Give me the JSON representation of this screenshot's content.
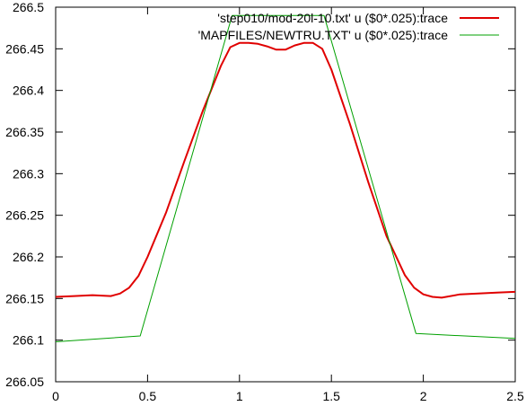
{
  "chart_data": {
    "type": "line",
    "title": "",
    "xlabel": "",
    "ylabel": "",
    "xlim": [
      0,
      2.5
    ],
    "ylim": [
      266.05,
      266.5
    ],
    "grid": false,
    "legend_position": "top-right",
    "x_ticks": [
      {
        "value": 0,
        "label": "0"
      },
      {
        "value": 0.5,
        "label": "0.5"
      },
      {
        "value": 1,
        "label": "1"
      },
      {
        "value": 1.5,
        "label": "1.5"
      },
      {
        "value": 2,
        "label": "2"
      },
      {
        "value": 2.5,
        "label": "2.5"
      }
    ],
    "y_ticks": [
      {
        "value": 266.05,
        "label": "266.05"
      },
      {
        "value": 266.1,
        "label": "266.1"
      },
      {
        "value": 266.15,
        "label": "266.15"
      },
      {
        "value": 266.2,
        "label": "266.2"
      },
      {
        "value": 266.25,
        "label": "266.25"
      },
      {
        "value": 266.3,
        "label": "266.3"
      },
      {
        "value": 266.35,
        "label": "266.35"
      },
      {
        "value": 266.4,
        "label": "266.4"
      },
      {
        "value": 266.45,
        "label": "266.45"
      },
      {
        "value": 266.5,
        "label": "266.5"
      }
    ],
    "series": [
      {
        "name": "'step010/mod-20l-10.txt' u ($0*.025):trace",
        "color": "#e00000",
        "x": [
          0,
          0.1,
          0.2,
          0.3,
          0.35,
          0.4,
          0.45,
          0.5,
          0.6,
          0.7,
          0.8,
          0.9,
          0.95,
          1.0,
          1.05,
          1.1,
          1.15,
          1.2,
          1.25,
          1.3,
          1.35,
          1.4,
          1.45,
          1.5,
          1.6,
          1.7,
          1.8,
          1.9,
          1.95,
          2.0,
          2.05,
          2.1,
          2.2,
          2.3,
          2.4,
          2.5
        ],
        "y": [
          266.152,
          266.153,
          266.154,
          266.153,
          266.156,
          266.163,
          266.177,
          266.2,
          266.253,
          266.315,
          266.375,
          266.43,
          266.452,
          266.457,
          266.457,
          266.456,
          266.453,
          266.449,
          266.449,
          266.454,
          266.457,
          266.457,
          266.45,
          266.425,
          266.36,
          266.29,
          266.225,
          266.178,
          266.163,
          266.155,
          266.152,
          266.151,
          266.155,
          266.156,
          266.157,
          266.158
        ]
      },
      {
        "name": "'MAPFILES/NEWTRU.TXT' u ($0*.025):trace",
        "color": "#00a000",
        "x": [
          0,
          0.46,
          0.96,
          1.46,
          1.96,
          2.5
        ],
        "y": [
          266.098,
          266.105,
          266.49,
          266.49,
          266.108,
          266.102
        ]
      }
    ]
  }
}
